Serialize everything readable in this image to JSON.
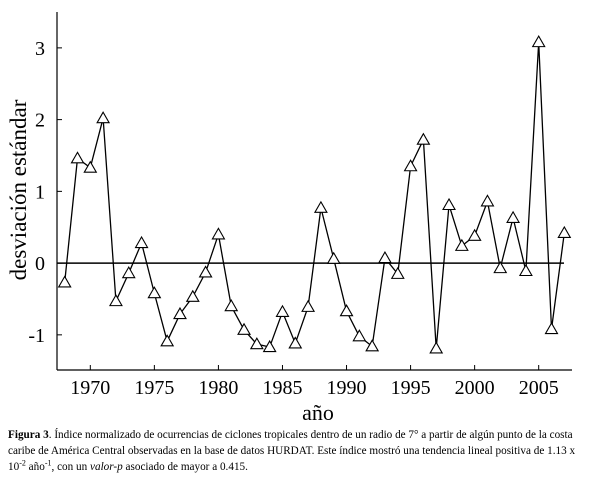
{
  "chart_data": {
    "type": "line",
    "xlabel": "año",
    "ylabel": "desviación estándar",
    "x": [
      1968,
      1969,
      1970,
      1971,
      1972,
      1973,
      1974,
      1975,
      1976,
      1977,
      1978,
      1979,
      1980,
      1981,
      1982,
      1983,
      1984,
      1985,
      1986,
      1987,
      1988,
      1989,
      1990,
      1991,
      1992,
      1993,
      1994,
      1995,
      1996,
      1997,
      1998,
      1999,
      2000,
      2001,
      2002,
      2003,
      2004,
      2005,
      2006,
      2007
    ],
    "series": [
      {
        "color": "#000000",
        "marker": "triangle",
        "values": [
          -0.27,
          1.46,
          1.33,
          2.02,
          -0.53,
          -0.14,
          0.28,
          -0.42,
          -1.09,
          -0.71,
          -0.47,
          -0.13,
          0.4,
          -0.6,
          -0.93,
          -1.13,
          -1.17,
          -0.68,
          -1.12,
          -0.61,
          0.77,
          0.06,
          -0.67,
          -1.02,
          -1.16,
          0.07,
          -0.15,
          1.35,
          1.72,
          -1.19,
          0.81,
          0.24,
          0.38,
          0.86,
          -0.07,
          0.63,
          -0.11,
          3.08,
          -0.92,
          0.42
        ]
      }
    ],
    "xlim": [
      1967.4,
      2007.6
    ],
    "ylim": [
      -1.49,
      3.5
    ],
    "xticks": [
      1970,
      1975,
      1980,
      1985,
      1990,
      1995,
      2000,
      2005
    ],
    "yticks": [
      -1,
      0,
      1,
      2,
      3
    ],
    "hline": 0
  },
  "caption": [
    "Figura 3",
    ". Índice normalizado de ocurrencias de ciclones tropicales dentro de un radio de 7° a partir de algún punto de la costa caribe de América Central observadas en la base de datos HURDAT. Este índice mostró una tendencia lineal positiva de 1.13 x 10",
    "-2",
    " año",
    "-1",
    ", con un ",
    "valor-p",
    " asociado de mayor a 0.415."
  ]
}
